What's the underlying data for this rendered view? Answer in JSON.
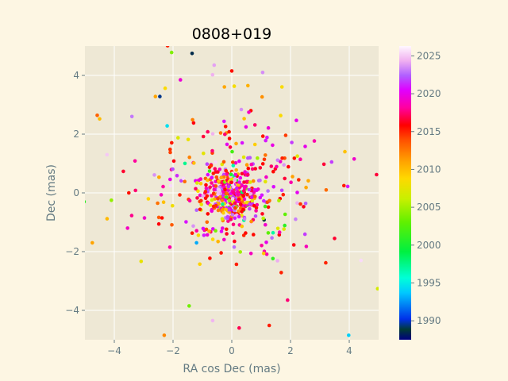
{
  "chart_data": {
    "type": "scatter",
    "title": "0808+019",
    "xlabel": "RA cos Dec (mas)",
    "ylabel": "Dec (mas)",
    "xlim": [
      -5,
      5
    ],
    "ylim": [
      -5,
      5
    ],
    "xticks": [
      -4,
      -2,
      0,
      2,
      4
    ],
    "yticks": [
      -4,
      -2,
      0,
      2,
      4
    ],
    "grid": true,
    "colorbar": {
      "label": "",
      "range": [
        1987.5,
        2026.3
      ],
      "ticks": [
        1990,
        1995,
        2000,
        2005,
        2010,
        2015,
        2020,
        2025
      ],
      "colormap": "gist_ncar"
    },
    "point_count": 700,
    "points_sample": [
      {
        "x": -1.35,
        "y": 4.75,
        "epoch": 1988.5
      },
      {
        "x": -2.45,
        "y": 3.28,
        "epoch": 1989.5
      },
      {
        "x": 1.1,
        "y": -0.92,
        "epoch": 1988.8
      },
      {
        "x": 3.98,
        "y": -4.85,
        "epoch": 1994.0
      },
      {
        "x": -2.2,
        "y": 2.28,
        "epoch": 1994.5
      },
      {
        "x": -1.2,
        "y": -1.7,
        "epoch": 1993.0
      },
      {
        "x": -2.05,
        "y": 4.78,
        "epoch": 2004.0
      },
      {
        "x": -4.1,
        "y": -0.25,
        "epoch": 2004.5
      },
      {
        "x": -1.45,
        "y": -3.85,
        "epoch": 2003.5
      },
      {
        "x": -4.75,
        "y": -1.7,
        "epoch": 2011.0
      },
      {
        "x": -4.5,
        "y": 2.52,
        "epoch": 2010.0
      },
      {
        "x": -2.6,
        "y": 3.28,
        "epoch": 2011.0
      },
      {
        "x": -2.3,
        "y": -4.85,
        "epoch": 2012.0
      },
      {
        "x": 0.55,
        "y": 3.65,
        "epoch": 2010.5
      },
      {
        "x": 0.0,
        "y": 4.15,
        "epoch": 2015.5
      },
      {
        "x": 0.65,
        "y": 2.8,
        "epoch": 2015.5
      },
      {
        "x": 3.2,
        "y": -2.38,
        "epoch": 2015.0
      },
      {
        "x": 3.5,
        "y": -1.55,
        "epoch": 2016.5
      },
      {
        "x": -1.3,
        "y": 2.38,
        "epoch": 2016.0
      },
      {
        "x": 0.25,
        "y": -4.6,
        "epoch": 2017.0
      },
      {
        "x": 1.9,
        "y": -3.65,
        "epoch": 2017.5
      },
      {
        "x": -3.55,
        "y": -1.2,
        "epoch": 2019.0
      },
      {
        "x": -1.75,
        "y": 3.85,
        "epoch": 2019.5
      },
      {
        "x": 2.5,
        "y": 1.58,
        "epoch": 2020.0
      },
      {
        "x": 3.95,
        "y": 0.22,
        "epoch": 2021.0
      },
      {
        "x": 1.05,
        "y": 4.1,
        "epoch": 2023.5
      },
      {
        "x": -3.4,
        "y": 2.6,
        "epoch": 2023.0
      },
      {
        "x": -0.6,
        "y": 4.35,
        "epoch": 2024.0
      },
      {
        "x": -4.25,
        "y": 1.3,
        "epoch": 2025.0
      },
      {
        "x": -0.65,
        "y": -4.35,
        "epoch": 2024.5
      },
      {
        "x": 4.4,
        "y": -2.3,
        "epoch": 2025.5
      }
    ]
  },
  "colors": {
    "figure_background": "#fdf6e3",
    "plot_background": "#eee8d5",
    "grid": "#ffffff",
    "label_text": "#657b83"
  }
}
